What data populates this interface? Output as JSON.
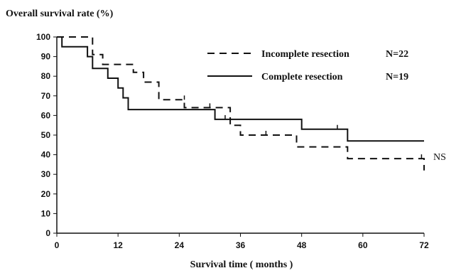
{
  "chart_data": {
    "type": "line",
    "title": "Overall survival rate (%)",
    "xlabel": "Survival time ( months )",
    "ylabel": "",
    "xlim": [
      0,
      72
    ],
    "ylim": [
      0,
      100
    ],
    "x_ticks": [
      0,
      12,
      24,
      36,
      48,
      60,
      72
    ],
    "y_ticks": [
      0,
      10,
      20,
      30,
      40,
      50,
      60,
      70,
      80,
      90,
      100
    ],
    "annotation": "NS",
    "legend_position": "top-right",
    "series": [
      {
        "name": "Incomplete resection",
        "n_label": "N=22",
        "style": "dashed",
        "color": "#111111",
        "x": [
          0,
          7,
          7,
          9,
          9,
          15,
          15,
          17,
          17,
          20,
          20,
          25,
          25,
          34,
          34,
          36,
          36,
          47,
          47,
          57,
          57,
          72,
          72
        ],
        "y": [
          100,
          100,
          91,
          91,
          86,
          86,
          82,
          82,
          77,
          77,
          68,
          68,
          64,
          64,
          55,
          55,
          50,
          50,
          44,
          44,
          38,
          38,
          32
        ],
        "censor_x": [
          25,
          30,
          41,
          71.5
        ],
        "censor_y": [
          68,
          64,
          50,
          38
        ]
      },
      {
        "name": "Complete resection",
        "n_label": "N=19",
        "style": "solid",
        "color": "#111111",
        "x": [
          0,
          1,
          1,
          6,
          6,
          7,
          7,
          10,
          10,
          12,
          12,
          13,
          13,
          14,
          14,
          31,
          31,
          33,
          33,
          48,
          48,
          57,
          57,
          72
        ],
        "y": [
          100,
          100,
          95,
          95,
          90,
          90,
          84,
          84,
          79,
          79,
          74,
          74,
          69,
          69,
          63,
          63,
          58,
          58,
          58,
          58,
          53,
          53,
          47,
          47
        ],
        "censor_x": [
          33,
          55
        ],
        "censor_y": [
          58,
          53
        ]
      }
    ]
  }
}
